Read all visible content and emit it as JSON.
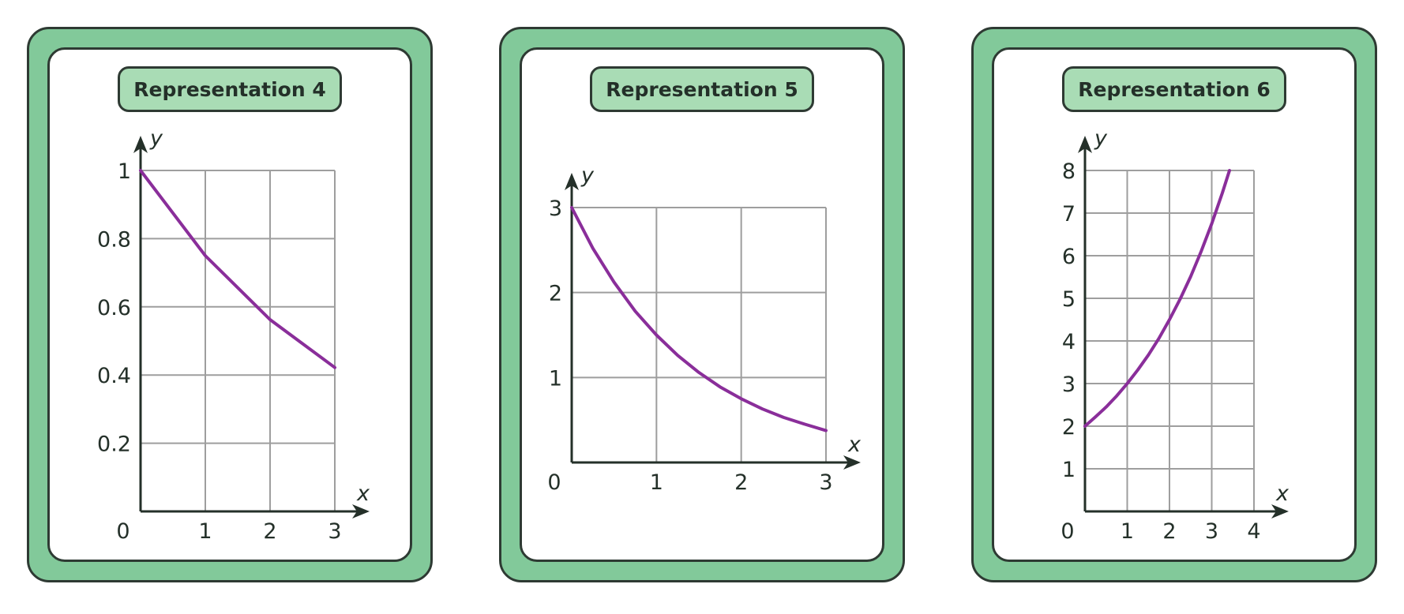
{
  "colors": {
    "card_border": "#82c99a",
    "title_fill": "#a9dcb5",
    "outline": "#2e3a33",
    "grid": "#9e9e9e",
    "axis": "#243029",
    "curve": "#8a2e9a"
  },
  "chart_data": [
    {
      "type": "line",
      "title": "Representation 4",
      "xlabel": "x",
      "ylabel": "y",
      "xlim": [
        0,
        3
      ],
      "ylim": [
        0,
        1
      ],
      "x_ticks": [
        "1",
        "2",
        "3"
      ],
      "y_ticks": [
        "0.2",
        "0.4",
        "0.6",
        "0.8",
        "1"
      ],
      "origin_label": "0",
      "grid": true,
      "x": [
        0,
        1,
        2,
        3
      ],
      "y": [
        1,
        0.75,
        0.5625,
        0.4219
      ]
    },
    {
      "type": "line",
      "title": "Representation 5",
      "xlabel": "x",
      "ylabel": "y",
      "xlim": [
        0,
        3
      ],
      "ylim": [
        0,
        3
      ],
      "x_ticks": [
        "1",
        "2",
        "3"
      ],
      "y_ticks": [
        "1",
        "2",
        "3"
      ],
      "origin_label": "0",
      "grid": true,
      "x": [
        0,
        0.25,
        0.5,
        0.75,
        1,
        1.25,
        1.5,
        1.75,
        2,
        2.25,
        2.5,
        2.75,
        3
      ],
      "y": [
        3,
        2.52,
        2.12,
        1.78,
        1.5,
        1.26,
        1.06,
        0.89,
        0.75,
        0.63,
        0.53,
        0.45,
        0.375
      ]
    },
    {
      "type": "line",
      "title": "Representation 6",
      "xlabel": "x",
      "ylabel": "y",
      "xlim": [
        0,
        4
      ],
      "ylim": [
        0,
        8
      ],
      "x_ticks": [
        "1",
        "2",
        "3",
        "4"
      ],
      "y_ticks": [
        "1",
        "2",
        "3",
        "4",
        "5",
        "6",
        "7",
        "8"
      ],
      "origin_label": "0",
      "grid": true,
      "x": [
        0,
        0.25,
        0.5,
        0.75,
        1,
        1.25,
        1.5,
        1.75,
        2,
        2.25,
        2.5,
        2.75,
        3,
        3.25,
        3.42
      ],
      "y": [
        2,
        2.22,
        2.45,
        2.71,
        3,
        3.32,
        3.67,
        4.06,
        4.5,
        4.98,
        5.51,
        6.1,
        6.75,
        7.47,
        8
      ]
    }
  ]
}
